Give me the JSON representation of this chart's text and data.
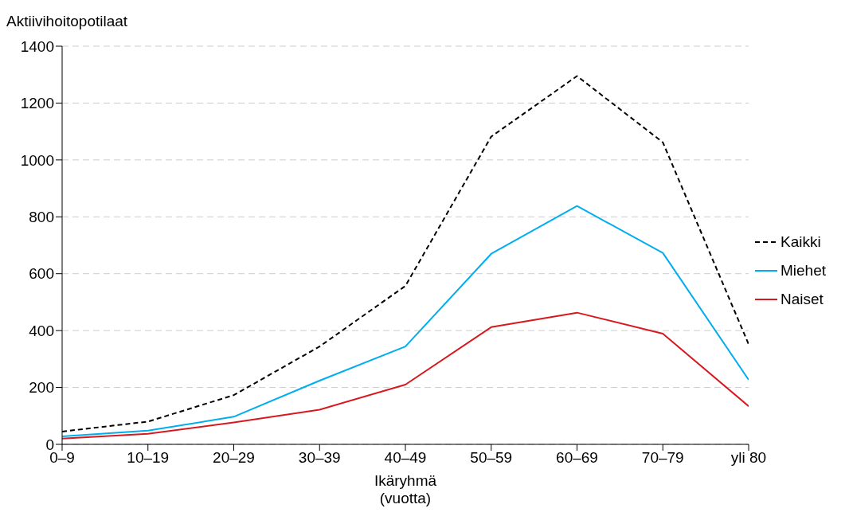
{
  "chart_data": {
    "type": "line",
    "ylabel": "Aktiivihoitopotilaat",
    "xlabel": "Ikäryhmä\n(vuotta)",
    "categories": [
      "0–9",
      "10–19",
      "20–29",
      "30–39",
      "40–49",
      "50–59",
      "60–69",
      "70–79",
      "yli 80"
    ],
    "ylim": [
      0,
      1400
    ],
    "yticks": [
      0,
      200,
      400,
      600,
      800,
      1000,
      1200,
      1400
    ],
    "grid": "y",
    "legend": "right",
    "marker": "none",
    "series": [
      {
        "name": "Kaikki",
        "color": "#000000",
        "line_style": "dashed",
        "values": [
          45,
          80,
          173,
          344,
          557,
          1082,
          1295,
          1062,
          352
        ]
      },
      {
        "name": "Miehet",
        "color": "#00aeef",
        "line_style": "solid",
        "values": [
          28,
          48,
          97,
          224,
          344,
          670,
          838,
          673,
          227
        ]
      },
      {
        "name": "Naiset",
        "color": "#d7191f",
        "line_style": "solid",
        "values": [
          20,
          37,
          77,
          122,
          210,
          412,
          463,
          389,
          134
        ]
      }
    ]
  }
}
